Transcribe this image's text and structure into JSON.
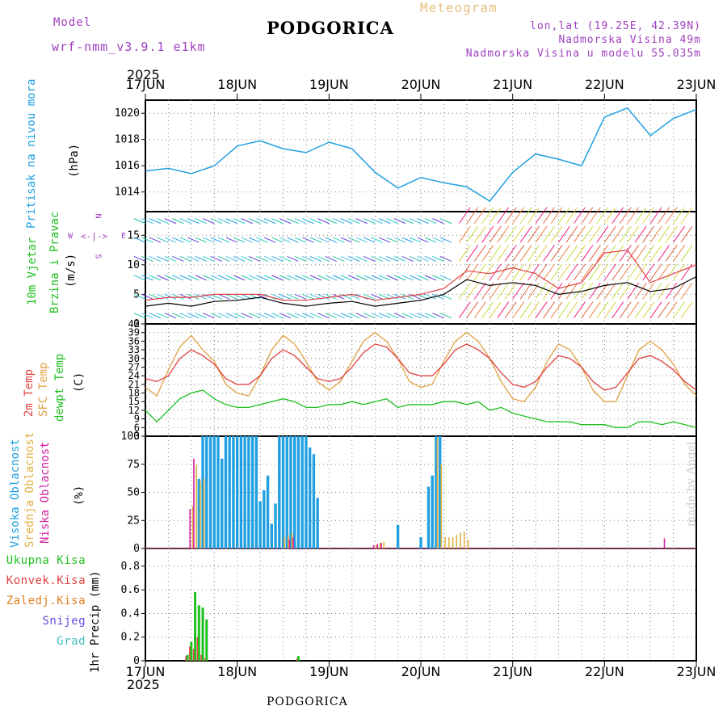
{
  "header": {
    "meteogram_label": "Meteogram",
    "title": "PODGORICA",
    "model_label": "Model",
    "model_name": "wrf-nmm_v3.9.1 e1km",
    "coords": "lon,lat (19.25E, 42.39N)",
    "elevation": "Nadmorska Visina 49m",
    "model_elevation": "Nadmorska Visina u modelu 55.035m",
    "credit": "made by Angel",
    "footer": "PODGORICA"
  },
  "colors": {
    "pressure": "#20a0e0",
    "wind_speed": "#000000",
    "gust": "#e04040",
    "temp2m": "#e04040",
    "sfc_temp": "#e0a040",
    "dewpt": "#20c020",
    "cloud_high": "#20a0e0",
    "cloud_mid": "#e0b040",
    "cloud_low": "#d020a0",
    "precip_total": "#20c020",
    "precip_conv": "#e04040",
    "precip_frozen": "#e08020",
    "precip_snow": "#6050e0",
    "precip_grad": "#40c0c0"
  },
  "axis": {
    "year": "2025",
    "days": [
      "17JUN",
      "18JUN",
      "19JUN",
      "20JUN",
      "21JUN",
      "22JUN",
      "23JUN"
    ]
  },
  "panels": {
    "pressure": {
      "label": "Pritisak na nivou mora",
      "unit": "(hPa)",
      "ticks": [
        "1014",
        "1016",
        "1018",
        "1020"
      ]
    },
    "wind": {
      "label1": "10m Vjetar",
      "label2": "Brzina i Pravac",
      "unit": "(m/s)",
      "ticks": [
        "0",
        "5",
        "10",
        "15"
      ],
      "compass_w": "W",
      "compass_e": "E",
      "compass_n": "N",
      "compass_s": "S"
    },
    "temp": {
      "label1": "2m Temp",
      "label2": "SFC Temp",
      "label3": "dewpt Temp",
      "unit": "(C)",
      "ticks": [
        "3",
        "6",
        "9",
        "12",
        "15",
        "18",
        "21",
        "24",
        "27",
        "30",
        "33",
        "36",
        "39",
        "42"
      ]
    },
    "cloud": {
      "label1": "Visoka Oblacnost",
      "label2": "Srednja Oblacnost",
      "label3": "Niska Oblacnost",
      "unit": "(%)",
      "ticks": [
        "0",
        "25",
        "50",
        "75",
        "100"
      ]
    },
    "precip": {
      "unit": "1hr Precip (mm)",
      "ticks": [
        "0",
        "0.2",
        "0.4",
        "0.6",
        "0.8"
      ],
      "legend": [
        "Ukupna Kisa",
        "Konvek.Kisa",
        "Zaledj.Kisa",
        "Snijeg",
        "Grad"
      ]
    }
  },
  "chart_data": [
    {
      "type": "line",
      "title": "",
      "ylabel": "Pritisak na nivou mora (hPa)",
      "ylim": [
        1012.5,
        1021
      ],
      "x": [
        0,
        6,
        12,
        18,
        24,
        30,
        36,
        42,
        48,
        54,
        60,
        66,
        72,
        78,
        84,
        90,
        96,
        102,
        108,
        114,
        120,
        126,
        132,
        138,
        144
      ],
      "series": [
        {
          "values": [
            1015.6,
            1015.8,
            1015.4,
            1016.0,
            1017.5,
            1017.9,
            1017.3,
            1017.0,
            1017.8,
            1017.3,
            1015.5,
            1014.3,
            1015.1,
            1014.7,
            1014.4,
            1013.3,
            1015.5,
            1016.9,
            1016.5,
            1016.0,
            1019.7,
            1020.4,
            1018.3,
            1019.6,
            1020.3
          ]
        }
      ],
      "grid": true
    },
    {
      "type": "line",
      "title": "",
      "ylabel": "10m Vjetar Brzina i Pravac (m/s)",
      "ylim": [
        0,
        19
      ],
      "x": [
        0,
        6,
        12,
        18,
        24,
        30,
        36,
        42,
        48,
        54,
        60,
        66,
        72,
        78,
        84,
        90,
        96,
        102,
        108,
        114,
        120,
        126,
        132,
        138,
        144
      ],
      "series": [
        {
          "values": [
            3.0,
            3.5,
            3.0,
            3.8,
            4.0,
            4.5,
            3.5,
            3.0,
            3.5,
            3.8,
            3.0,
            3.5,
            4.0,
            5.0,
            7.5,
            6.5,
            7.0,
            6.5,
            5.0,
            5.5,
            6.5,
            7.0,
            5.5,
            6.0,
            8.0
          ]
        },
        {
          "values": [
            4.0,
            4.5,
            4.5,
            5.0,
            5.0,
            5.0,
            4.0,
            4.0,
            4.5,
            5.0,
            4.0,
            4.5,
            5.0,
            6.0,
            9.0,
            8.5,
            9.5,
            8.5,
            6.0,
            7.0,
            12.0,
            12.5,
            7.0,
            8.5,
            10.0
          ]
        }
      ],
      "grid": true
    },
    {
      "type": "line",
      "title": "",
      "ylabel": "2m Temp / SFC Temp / dewpt Temp (C)",
      "ylim": [
        3,
        42
      ],
      "x": [
        0,
        3,
        6,
        9,
        12,
        15,
        18,
        21,
        24,
        27,
        30,
        33,
        36,
        39,
        42,
        45,
        48,
        51,
        54,
        57,
        60,
        63,
        66,
        69,
        72,
        75,
        78,
        81,
        84,
        87,
        90,
        93,
        96,
        99,
        102,
        105,
        108,
        111,
        114,
        117,
        120,
        123,
        126,
        129,
        132,
        135,
        138,
        141,
        144
      ],
      "series": [
        {
          "name": "2m Temp",
          "values": [
            23,
            22,
            24,
            30,
            33,
            31,
            28,
            23,
            21,
            21,
            24,
            30,
            33,
            31,
            27,
            23,
            22,
            23,
            27,
            32,
            35,
            34,
            30,
            25,
            24,
            24,
            28,
            33,
            35,
            33,
            30,
            25,
            21,
            20,
            22,
            27,
            31,
            30,
            27,
            22,
            19,
            20,
            25,
            30,
            31,
            29,
            26,
            22,
            19
          ]
        },
        {
          "name": "SFC Temp",
          "values": [
            20,
            17,
            26,
            34,
            38,
            33,
            29,
            21,
            18,
            17,
            24,
            33,
            38,
            35,
            29,
            22,
            19,
            22,
            29,
            36,
            39,
            36,
            30,
            22,
            20,
            21,
            29,
            36,
            39,
            36,
            30,
            22,
            16,
            15,
            20,
            29,
            35,
            33,
            27,
            19,
            15,
            15,
            24,
            33,
            36,
            33,
            28,
            21,
            17
          ]
        },
        {
          "name": "dewpt Temp",
          "values": [
            12,
            8,
            12,
            16,
            18,
            19,
            16,
            14,
            13,
            13,
            14,
            15,
            16,
            15,
            13,
            13,
            14,
            14,
            15,
            14,
            15,
            16,
            13,
            14,
            14,
            14,
            15,
            15,
            14,
            15,
            12,
            13,
            11,
            10,
            9,
            8,
            8,
            8,
            7,
            7,
            7,
            6,
            6,
            8,
            8,
            7,
            8,
            7,
            6
          ]
        }
      ],
      "grid": true
    },
    {
      "type": "bar",
      "title": "",
      "ylabel": "Oblacnost (%)",
      "ylim": [
        0,
        100
      ],
      "x": [
        12,
        13,
        14,
        15,
        16,
        17,
        18,
        19,
        20,
        21,
        22,
        23,
        24,
        25,
        26,
        27,
        28,
        29,
        30,
        31,
        32,
        33,
        34,
        35,
        36,
        37,
        38,
        39,
        40,
        41,
        42,
        43,
        44,
        45,
        46,
        47,
        48,
        60,
        61,
        62,
        66,
        72,
        73,
        74,
        75,
        76,
        77,
        78,
        79,
        80,
        81,
        82,
        83,
        84,
        136
      ],
      "series": [
        {
          "name": "Visoka Oblacnost",
          "values": [
            0,
            0,
            62,
            100,
            100,
            100,
            100,
            100,
            80,
            100,
            100,
            100,
            100,
            100,
            100,
            100,
            100,
            100,
            42,
            52,
            65,
            22,
            40,
            100,
            100,
            100,
            100,
            100,
            100,
            100,
            100,
            90,
            84,
            45,
            0,
            0,
            0,
            0,
            0,
            0,
            21,
            10,
            0,
            55,
            65,
            100,
            100,
            0,
            0,
            0,
            0,
            0,
            0,
            0,
            0
          ]
        },
        {
          "name": "Srednja Oblacnost",
          "values": [
            38,
            75,
            60,
            62,
            0,
            0,
            0,
            0,
            0,
            0,
            0,
            0,
            0,
            0,
            0,
            0,
            0,
            0,
            0,
            0,
            0,
            0,
            0,
            0,
            10,
            12,
            14,
            0,
            0,
            0,
            0,
            0,
            0,
            0,
            0,
            0,
            0,
            3,
            5,
            6,
            0,
            0,
            0,
            0,
            0,
            98,
            75,
            10,
            10,
            10,
            12,
            14,
            15,
            8,
            0
          ]
        },
        {
          "name": "Niska Oblacnost",
          "values": [
            35,
            80,
            0,
            0,
            0,
            0,
            0,
            0,
            0,
            0,
            0,
            0,
            0,
            0,
            0,
            0,
            0,
            0,
            0,
            0,
            0,
            0,
            0,
            0,
            0,
            0,
            8,
            10,
            0,
            0,
            0,
            0,
            0,
            0,
            0,
            0,
            0,
            3,
            4,
            5,
            0,
            0,
            0,
            0,
            0,
            0,
            0,
            0,
            0,
            0,
            0,
            0,
            0,
            0,
            9
          ]
        }
      ],
      "grid": true
    },
    {
      "type": "bar",
      "title": "",
      "ylabel": "1hr Precip (mm)",
      "ylim": [
        0,
        0.95
      ],
      "x": [
        11,
        12,
        13,
        14,
        15,
        16,
        17,
        40
      ],
      "series": [
        {
          "name": "Ukupna Kisa",
          "values": [
            0.05,
            0.16,
            0.58,
            0.47,
            0.45,
            0.35,
            0.0,
            0.04
          ]
        },
        {
          "name": "Konvek.Kisa",
          "values": [
            0.04,
            0.12,
            0.1,
            0.2,
            0.05,
            0.02,
            0.0,
            0.02
          ]
        }
      ],
      "grid": true
    }
  ]
}
